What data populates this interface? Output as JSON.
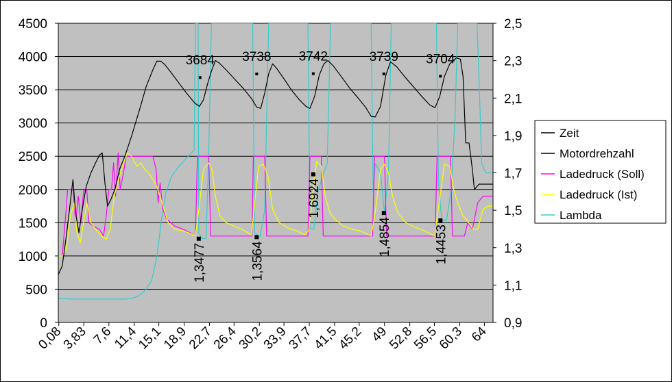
{
  "chart_data": {
    "type": "line",
    "y_left": {
      "min": 0,
      "max": 4500,
      "ticks": [
        "0",
        "500",
        "1000",
        "1500",
        "2000",
        "2500",
        "3000",
        "3500",
        "4000",
        "4500"
      ]
    },
    "y_right": {
      "min": 0.9,
      "max": 2.5,
      "ticks": [
        "0,9",
        "1,1",
        "1,3",
        "1,5",
        "1,7",
        "1,9",
        "2,1",
        "2,3",
        "2,5"
      ]
    },
    "x": {
      "min": 0,
      "max": 65.3,
      "ticks": [
        "0,08",
        "3,83",
        "7,6",
        "11,4",
        "15,1",
        "18,9",
        "22,7",
        "26,4",
        "30,2",
        "33,9",
        "37,7",
        "41,5",
        "45,2",
        "49",
        "52,8",
        "56,5",
        "60,3",
        "64"
      ],
      "tick_values": [
        0.08,
        3.83,
        7.6,
        11.4,
        15.1,
        18.9,
        22.7,
        26.4,
        30.2,
        33.9,
        37.7,
        41.5,
        45.2,
        49,
        52.8,
        56.5,
        60.3,
        64
      ]
    },
    "grid": true,
    "plot_background": "#c0c0c0",
    "legend_position": "right",
    "legend": [
      {
        "name": "Zeit",
        "color": "#000000"
      },
      {
        "name": "Motordrehzahl",
        "color": "#000000"
      },
      {
        "name": "Ladedruck (Soll)",
        "color": "#ff00ff"
      },
      {
        "name": "Ladedruck (Ist)",
        "color": "#ffff00"
      },
      {
        "name": "Lambda",
        "color": "#33cccc"
      }
    ],
    "series": [
      {
        "name": "Motordrehzahl",
        "axis": "left",
        "color": "#000000",
        "points": [
          [
            0,
            720
          ],
          [
            0.6,
            850
          ],
          [
            1.2,
            1300
          ],
          [
            1.8,
            1800
          ],
          [
            2.2,
            2150
          ],
          [
            2.6,
            1650
          ],
          [
            3.1,
            1350
          ],
          [
            3.6,
            1700
          ],
          [
            4.2,
            2050
          ],
          [
            4.9,
            2250
          ],
          [
            5.6,
            2400
          ],
          [
            6.2,
            2520
          ],
          [
            6.6,
            2550
          ],
          [
            7.0,
            2100
          ],
          [
            7.4,
            1750
          ],
          [
            7.9,
            1850
          ],
          [
            8.5,
            2000
          ],
          [
            9.2,
            2300
          ],
          [
            10.0,
            2500
          ],
          [
            11.0,
            2800
          ],
          [
            12.2,
            3200
          ],
          [
            13.2,
            3550
          ],
          [
            14.2,
            3800
          ],
          [
            14.8,
            3930
          ],
          [
            15.4,
            3930
          ],
          [
            16.0,
            3880
          ],
          [
            17.0,
            3750
          ],
          [
            18.5,
            3550
          ],
          [
            19.5,
            3420
          ],
          [
            20.5,
            3300
          ],
          [
            21.2,
            3250
          ],
          [
            21.8,
            3350
          ],
          [
            22.4,
            3580
          ],
          [
            23.0,
            3780
          ],
          [
            23.6,
            3940
          ],
          [
            24.2,
            3900
          ],
          [
            25.2,
            3800
          ],
          [
            26.5,
            3660
          ],
          [
            27.8,
            3520
          ],
          [
            29.0,
            3370
          ],
          [
            29.8,
            3240
          ],
          [
            30.4,
            3220
          ],
          [
            31.0,
            3450
          ],
          [
            31.6,
            3740
          ],
          [
            32.2,
            3890
          ],
          [
            32.8,
            3820
          ],
          [
            34.0,
            3650
          ],
          [
            35.0,
            3500
          ],
          [
            36.2,
            3350
          ],
          [
            37.2,
            3250
          ],
          [
            37.8,
            3220
          ],
          [
            38.5,
            3400
          ],
          [
            39.2,
            3720
          ],
          [
            39.9,
            3890
          ],
          [
            40.5,
            3940
          ],
          [
            41.3,
            3860
          ],
          [
            42.5,
            3700
          ],
          [
            43.8,
            3520
          ],
          [
            45.0,
            3380
          ],
          [
            46.2,
            3230
          ],
          [
            47.0,
            3100
          ],
          [
            47.6,
            3090
          ],
          [
            48.4,
            3250
          ],
          [
            49.2,
            3720
          ],
          [
            49.9,
            3920
          ],
          [
            50.8,
            3850
          ],
          [
            52.0,
            3700
          ],
          [
            53.3,
            3550
          ],
          [
            54.6,
            3400
          ],
          [
            55.8,
            3270
          ],
          [
            56.6,
            3230
          ],
          [
            57.3,
            3400
          ],
          [
            58.0,
            3700
          ],
          [
            58.8,
            3890
          ],
          [
            59.8,
            3980
          ],
          [
            60.4,
            3960
          ],
          [
            60.8,
            3700
          ],
          [
            61.2,
            2700
          ],
          [
            61.7,
            2700
          ],
          [
            62.2,
            2300
          ],
          [
            62.5,
            2000
          ],
          [
            63.2,
            2080
          ],
          [
            64.2,
            2080
          ],
          [
            65.3,
            2080
          ]
        ]
      },
      {
        "name": "Ladedruck (Soll)",
        "axis": "left",
        "color": "#ff00ff",
        "points": [
          [
            0,
            1000
          ],
          [
            0.6,
            1000
          ],
          [
            1.1,
            1600
          ],
          [
            1.4,
            2000
          ],
          [
            2.2,
            2000
          ],
          [
            2.6,
            1500
          ],
          [
            3.0,
            1900
          ],
          [
            3.4,
            1500
          ],
          [
            3.8,
            1980
          ],
          [
            4.3,
            1980
          ],
          [
            4.6,
            1500
          ],
          [
            5.2,
            1450
          ],
          [
            6.2,
            1400
          ],
          [
            6.8,
            1300
          ],
          [
            7.2,
            1600
          ],
          [
            7.6,
            2000
          ],
          [
            8.0,
            2000
          ],
          [
            8.3,
            2400
          ],
          [
            8.6,
            1900
          ],
          [
            9.0,
            2550
          ],
          [
            9.3,
            2000
          ],
          [
            9.8,
            2250
          ],
          [
            10.2,
            2500
          ],
          [
            11.0,
            2500
          ],
          [
            12.0,
            2500
          ],
          [
            13.0,
            2500
          ],
          [
            14.2,
            2500
          ],
          [
            14.7,
            2300
          ],
          [
            15.0,
            1800
          ],
          [
            15.3,
            2100
          ],
          [
            15.7,
            1700
          ],
          [
            16.3,
            1550
          ],
          [
            17.5,
            1450
          ],
          [
            18.8,
            1400
          ],
          [
            19.8,
            1350
          ],
          [
            20.6,
            1300
          ],
          [
            20.9,
            2500
          ],
          [
            22.6,
            2500
          ],
          [
            22.9,
            1300
          ],
          [
            29.1,
            1300
          ],
          [
            29.3,
            2500
          ],
          [
            31.0,
            2500
          ],
          [
            31.3,
            1300
          ],
          [
            37.5,
            1300
          ],
          [
            37.8,
            2500
          ],
          [
            39.5,
            2500
          ],
          [
            39.8,
            1300
          ],
          [
            47.2,
            1300
          ],
          [
            47.5,
            2500
          ],
          [
            49.0,
            2500
          ],
          [
            49.3,
            1300
          ],
          [
            56.6,
            1300
          ],
          [
            56.9,
            2500
          ],
          [
            58.9,
            2500
          ],
          [
            59.2,
            1300
          ],
          [
            61.0,
            1300
          ],
          [
            61.5,
            1500
          ],
          [
            62.2,
            1400
          ],
          [
            63.0,
            1800
          ],
          [
            63.8,
            1900
          ],
          [
            65.3,
            1900
          ]
        ]
      },
      {
        "name": "Ladedruck (Ist)",
        "axis": "left",
        "color": "#ffff00",
        "points": [
          [
            0,
            1000
          ],
          [
            0.6,
            1000
          ],
          [
            1.2,
            1100
          ],
          [
            1.8,
            1600
          ],
          [
            2.4,
            1800
          ],
          [
            2.8,
            1350
          ],
          [
            3.3,
            1200
          ],
          [
            3.8,
            1500
          ],
          [
            4.3,
            1800
          ],
          [
            4.9,
            1500
          ],
          [
            5.6,
            1400
          ],
          [
            6.5,
            1300
          ],
          [
            7.2,
            1250
          ],
          [
            7.8,
            1400
          ],
          [
            8.4,
            1900
          ],
          [
            9.2,
            2200
          ],
          [
            9.8,
            2400
          ],
          [
            10.4,
            2550
          ],
          [
            11.0,
            2500
          ],
          [
            11.8,
            2350
          ],
          [
            12.4,
            2400
          ],
          [
            13.0,
            2300
          ],
          [
            13.6,
            2250
          ],
          [
            14.2,
            2150
          ],
          [
            14.8,
            2050
          ],
          [
            15.6,
            1800
          ],
          [
            16.5,
            1500
          ],
          [
            17.5,
            1400
          ],
          [
            18.6,
            1380
          ],
          [
            19.6,
            1350
          ],
          [
            20.6,
            1300
          ],
          [
            21.0,
            1600
          ],
          [
            21.8,
            2300
          ],
          [
            22.6,
            2400
          ],
          [
            23.1,
            2300
          ],
          [
            23.6,
            1900
          ],
          [
            24.3,
            1600
          ],
          [
            25.2,
            1500
          ],
          [
            26.4,
            1450
          ],
          [
            27.6,
            1400
          ],
          [
            29.0,
            1320
          ],
          [
            29.4,
            1700
          ],
          [
            30.1,
            2350
          ],
          [
            30.8,
            2380
          ],
          [
            31.5,
            2200
          ],
          [
            32.2,
            1700
          ],
          [
            33.2,
            1500
          ],
          [
            34.5,
            1420
          ],
          [
            35.8,
            1380
          ],
          [
            37.0,
            1320
          ],
          [
            37.6,
            1380
          ],
          [
            38.2,
            1900
          ],
          [
            38.8,
            2420
          ],
          [
            39.5,
            2350
          ],
          [
            40.1,
            1900
          ],
          [
            40.8,
            1650
          ],
          [
            41.6,
            1550
          ],
          [
            42.8,
            1450
          ],
          [
            44.2,
            1400
          ],
          [
            45.6,
            1370
          ],
          [
            47.0,
            1300
          ],
          [
            47.6,
            1650
          ],
          [
            48.4,
            2300
          ],
          [
            49.0,
            2380
          ],
          [
            49.6,
            2250
          ],
          [
            50.2,
            1900
          ],
          [
            51.0,
            1650
          ],
          [
            52.2,
            1500
          ],
          [
            53.6,
            1430
          ],
          [
            55.0,
            1380
          ],
          [
            56.5,
            1300
          ],
          [
            57.2,
            1800
          ],
          [
            58.0,
            2380
          ],
          [
            58.8,
            2350
          ],
          [
            59.4,
            2000
          ],
          [
            60.0,
            1800
          ],
          [
            60.8,
            1600
          ],
          [
            61.3,
            1550
          ],
          [
            62.3,
            1400
          ],
          [
            63.0,
            1400
          ],
          [
            63.8,
            1700
          ],
          [
            64.5,
            1750
          ],
          [
            65.3,
            1750
          ]
        ]
      },
      {
        "name": "Lambda",
        "axis": "right",
        "color": "#33cccc",
        "points": [
          [
            0,
            1.03
          ],
          [
            2,
            1.025
          ],
          [
            4,
            1.025
          ],
          [
            6,
            1.025
          ],
          [
            8,
            1.025
          ],
          [
            10,
            1.025
          ],
          [
            11,
            1.028
          ],
          [
            12,
            1.04
          ],
          [
            13,
            1.07
          ],
          [
            14,
            1.12
          ],
          [
            14.8,
            1.25
          ],
          [
            15.5,
            1.45
          ],
          [
            16.2,
            1.6
          ],
          [
            17,
            1.68
          ],
          [
            18,
            1.73
          ],
          [
            19,
            1.77
          ],
          [
            19.8,
            1.8
          ],
          [
            20.4,
            1.82
          ],
          [
            20.6,
            2.5
          ],
          [
            21.0,
            2.5
          ],
          [
            21.1,
            1.38
          ],
          [
            21.6,
            1.3477
          ],
          [
            22.2,
            1.35
          ],
          [
            22.6,
            1.8
          ],
          [
            23.0,
            2.5
          ],
          [
            29.2,
            2.5
          ],
          [
            29.5,
            1.38
          ],
          [
            30.3,
            1.3564
          ],
          [
            31.0,
            1.5
          ],
          [
            31.6,
            2.5
          ],
          [
            37.5,
            2.5
          ],
          [
            37.8,
            1.4
          ],
          [
            38.4,
            1.4
          ],
          [
            39.0,
            1.6
          ],
          [
            39.8,
            1.6924
          ],
          [
            40.4,
            1.75
          ],
          [
            40.9,
            2.5
          ],
          [
            47.0,
            2.5
          ],
          [
            47.3,
            1.6
          ],
          [
            47.6,
            1.75
          ],
          [
            48.4,
            1.7
          ],
          [
            49.0,
            1.4854
          ],
          [
            49.6,
            1.7
          ],
          [
            50.0,
            2.5
          ],
          [
            56.8,
            2.5
          ],
          [
            57.1,
            1.65
          ],
          [
            57.6,
            1.45
          ],
          [
            58.3,
            1.4453
          ],
          [
            59.0,
            1.6
          ],
          [
            59.6,
            2.0
          ],
          [
            60.0,
            2.5
          ],
          [
            62.9,
            2.5
          ],
          [
            63.2,
            2.2
          ],
          [
            63.6,
            1.75
          ],
          [
            64.2,
            1.7
          ],
          [
            65.3,
            1.7
          ]
        ]
      }
    ],
    "rpm_labels": [
      {
        "x": 21.3,
        "y": 3684,
        "text": "3684"
      },
      {
        "x": 29.8,
        "y": 3738,
        "text": "3738"
      },
      {
        "x": 38.3,
        "y": 3742,
        "text": "3742"
      },
      {
        "x": 48.9,
        "y": 3739,
        "text": "3739"
      },
      {
        "x": 57.4,
        "y": 3704,
        "text": "3704"
      }
    ],
    "lambda_labels": [
      {
        "x": 21.1,
        "y": 1.3477,
        "text": "1,3477"
      },
      {
        "x": 29.8,
        "y": 1.3564,
        "text": "1,3564"
      },
      {
        "x": 38.3,
        "y": 1.6924,
        "text": "1,6924"
      },
      {
        "x": 48.9,
        "y": 1.4854,
        "text": "1,4854"
      },
      {
        "x": 57.4,
        "y": 1.4453,
        "text": "1,4453"
      }
    ]
  }
}
